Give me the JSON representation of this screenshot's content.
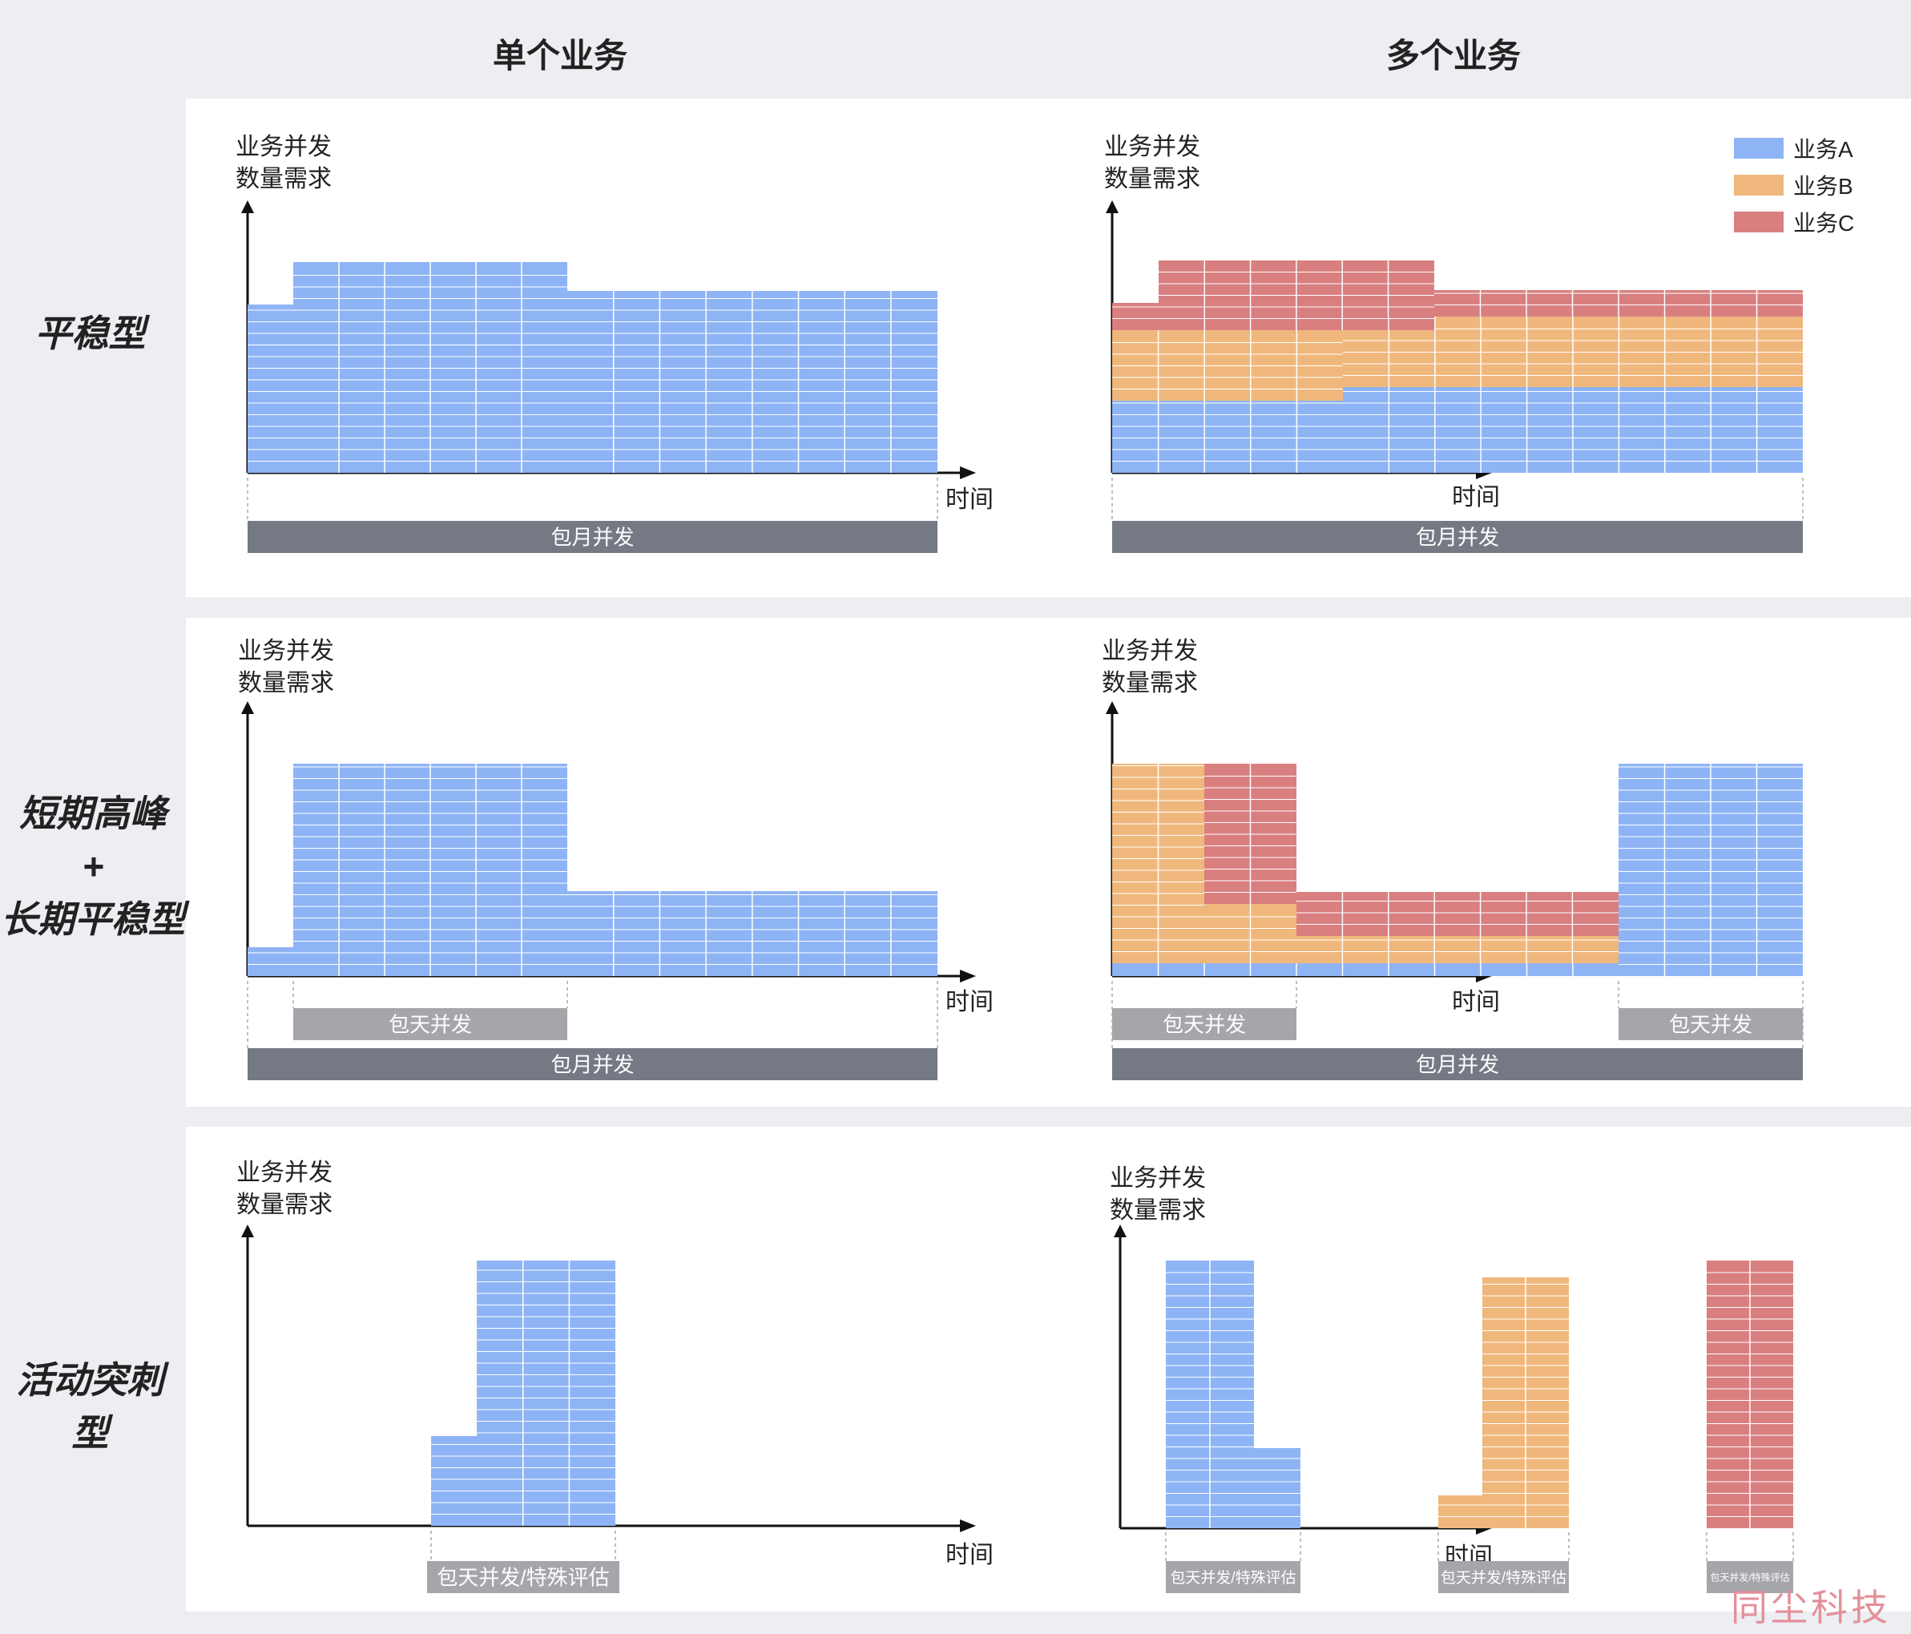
{
  "columns": {
    "single": "单个业务",
    "multi": "多个业务"
  },
  "rows": [
    {
      "label_lines": [
        "平稳型"
      ]
    },
    {
      "label_lines": [
        "短期高峰",
        "+",
        "长期平稳型"
      ]
    },
    {
      "label_lines": [
        "活动突刺型"
      ]
    }
  ],
  "axis": {
    "y_line1": "业务并发",
    "y_line2": "数量需求",
    "x": "时间"
  },
  "legend": [
    {
      "label": "业务A",
      "color": "#8fb4f5"
    },
    {
      "label": "业务B",
      "color": "#f0b77c"
    },
    {
      "label": "业务C",
      "color": "#d97f80"
    }
  ],
  "bar_labels": {
    "monthly": "包月并发",
    "daily": "包天并发",
    "daily_special": "包天并发/特殊评估"
  },
  "colors": {
    "A": "#8fb4f5",
    "B": "#f0b77c",
    "C": "#d97f80",
    "monthly_bar": "#757984",
    "daily_bar": "#a4a6aa",
    "grid": "#ffffff"
  },
  "watermark": "同尘科技"
}
